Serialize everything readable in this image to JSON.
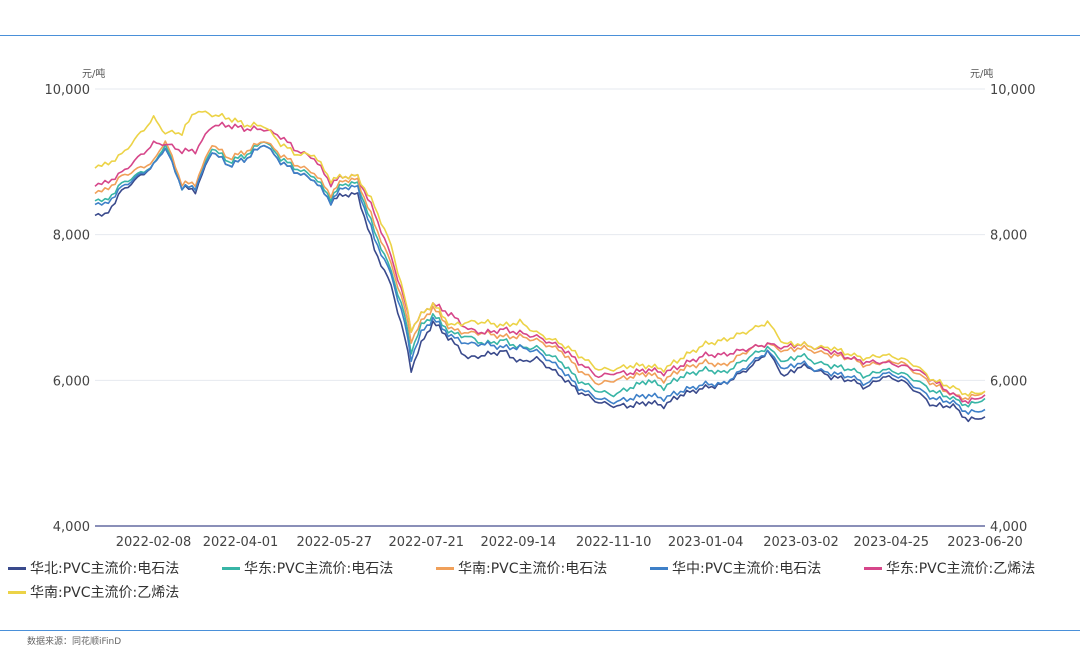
{
  "source_note": "数据来源：同花顺iFinD",
  "chart_data": {
    "type": "line",
    "ylabel_left": "元/吨",
    "ylabel_right": "元/吨",
    "ylim": [
      4000,
      10000
    ],
    "yticks": [
      "4,000",
      "6,000",
      "8,000",
      "10,000"
    ],
    "ytick_values": [
      4000,
      6000,
      8000,
      10000
    ],
    "grid": true,
    "legend_position": "bottom",
    "x_start": "2022-01-04",
    "x_end": "2023-06-20",
    "xticks": [
      "2022-02-08",
      "2022-04-01",
      "2022-05-27",
      "2022-07-21",
      "2022-09-14",
      "2022-11-10",
      "2023-01-04",
      "2023-03-02",
      "2023-04-25",
      "2023-06-20"
    ],
    "series": [
      {
        "name": "华北:PVC主流价:电石法",
        "color": "#3a4a8c",
        "x": [
          "2022-01-04",
          "2022-01-10",
          "2022-01-20",
          "2022-02-08",
          "2022-02-15",
          "2022-02-25",
          "2022-03-05",
          "2022-03-15",
          "2022-03-25",
          "2022-04-05",
          "2022-04-15",
          "2022-04-25",
          "2022-05-05",
          "2022-05-15",
          "2022-05-25",
          "2022-06-01",
          "2022-06-10",
          "2022-06-20",
          "2022-06-30",
          "2022-07-08",
          "2022-07-12",
          "2022-07-18",
          "2022-07-25",
          "2022-08-05",
          "2022-08-15",
          "2022-08-25",
          "2022-09-05",
          "2022-09-15",
          "2022-09-25",
          "2022-10-10",
          "2022-10-20",
          "2022-11-01",
          "2022-11-10",
          "2022-11-20",
          "2022-12-01",
          "2022-12-10",
          "2022-12-20",
          "2023-01-04",
          "2023-01-15",
          "2023-02-01",
          "2023-02-10",
          "2023-02-20",
          "2023-03-02",
          "2023-03-10",
          "2023-03-20",
          "2023-04-01",
          "2023-04-10",
          "2023-04-20",
          "2023-05-01",
          "2023-05-10",
          "2023-05-20",
          "2023-06-01",
          "2023-06-10",
          "2023-06-20"
        ],
        "y": [
          8300,
          8250,
          8600,
          8950,
          9200,
          8650,
          8600,
          9150,
          8950,
          9050,
          9250,
          9000,
          8850,
          8750,
          8450,
          8550,
          8550,
          7800,
          7300,
          6600,
          6150,
          6500,
          6800,
          6550,
          6300,
          6350,
          6400,
          6250,
          6300,
          6050,
          5850,
          5700,
          5650,
          5650,
          5700,
          5650,
          5800,
          5900,
          5950,
          6200,
          6400,
          6050,
          6200,
          6150,
          6050,
          6000,
          5900,
          6050,
          6000,
          5850,
          5650,
          5650,
          5450,
          5500
        ]
      },
      {
        "name": "华东:PVC主流价:电石法",
        "color": "#38b5a6",
        "x": [
          "2022-01-04",
          "2022-01-10",
          "2022-01-20",
          "2022-02-08",
          "2022-02-15",
          "2022-02-25",
          "2022-03-05",
          "2022-03-15",
          "2022-03-25",
          "2022-04-05",
          "2022-04-15",
          "2022-04-25",
          "2022-05-05",
          "2022-05-15",
          "2022-05-25",
          "2022-06-01",
          "2022-06-10",
          "2022-06-20",
          "2022-06-30",
          "2022-07-08",
          "2022-07-12",
          "2022-07-18",
          "2022-07-25",
          "2022-08-05",
          "2022-08-15",
          "2022-08-25",
          "2022-09-05",
          "2022-09-15",
          "2022-09-25",
          "2022-10-10",
          "2022-10-20",
          "2022-11-01",
          "2022-11-10",
          "2022-11-20",
          "2022-12-01",
          "2022-12-10",
          "2022-12-20",
          "2023-01-04",
          "2023-01-15",
          "2023-02-01",
          "2023-02-10",
          "2023-02-20",
          "2023-03-02",
          "2023-03-10",
          "2023-03-20",
          "2023-04-01",
          "2023-04-10",
          "2023-04-20",
          "2023-05-01",
          "2023-05-10",
          "2023-05-20",
          "2023-06-01",
          "2023-06-10",
          "2023-06-20"
        ],
        "y": [
          8500,
          8450,
          8700,
          8950,
          9250,
          8650,
          8650,
          9200,
          9000,
          9100,
          9300,
          9050,
          8900,
          8800,
          8500,
          8700,
          8700,
          8050,
          7500,
          6900,
          6400,
          6750,
          6900,
          6650,
          6600,
          6500,
          6550,
          6450,
          6450,
          6250,
          6000,
          5850,
          5800,
          5900,
          6000,
          5900,
          6050,
          6150,
          6100,
          6350,
          6450,
          6250,
          6350,
          6250,
          6200,
          6150,
          6050,
          6150,
          6100,
          6000,
          5850,
          5750,
          5650,
          5750
        ]
      },
      {
        "name": "华南:PVC主流价:电石法",
        "color": "#f0a05a",
        "x": [
          "2022-01-04",
          "2022-01-10",
          "2022-01-20",
          "2022-02-08",
          "2022-02-15",
          "2022-02-25",
          "2022-03-05",
          "2022-03-15",
          "2022-03-25",
          "2022-04-05",
          "2022-04-15",
          "2022-04-25",
          "2022-05-05",
          "2022-05-15",
          "2022-05-25",
          "2022-06-01",
          "2022-06-10",
          "2022-06-20",
          "2022-06-30",
          "2022-07-08",
          "2022-07-12",
          "2022-07-18",
          "2022-07-25",
          "2022-08-05",
          "2022-08-15",
          "2022-08-25",
          "2022-09-05",
          "2022-09-15",
          "2022-09-25",
          "2022-10-10",
          "2022-10-20",
          "2022-11-01",
          "2022-11-10",
          "2022-11-20",
          "2022-12-01",
          "2022-12-10",
          "2022-12-20",
          "2023-01-04",
          "2023-01-15",
          "2023-02-01",
          "2023-02-10",
          "2023-02-20",
          "2023-03-02",
          "2023-03-10",
          "2023-03-20",
          "2023-04-01",
          "2023-04-10",
          "2023-04-20",
          "2023-05-01",
          "2023-05-10",
          "2023-05-20",
          "2023-06-01",
          "2023-06-10",
          "2023-06-20"
        ],
        "y": [
          8600,
          8600,
          8800,
          9000,
          9300,
          8700,
          8700,
          9250,
          9050,
          9150,
          9300,
          9100,
          8950,
          8850,
          8550,
          8750,
          8750,
          8150,
          7600,
          7000,
          6550,
          6800,
          7000,
          6700,
          6650,
          6650,
          6600,
          6600,
          6550,
          6400,
          6150,
          5950,
          6000,
          6050,
          6100,
          6000,
          6150,
          6250,
          6200,
          6450,
          6500,
          6400,
          6450,
          6400,
          6350,
          6300,
          6200,
          6250,
          6250,
          6100,
          5950,
          5800,
          5750,
          5850
        ]
      },
      {
        "name": "华中:PVC主流价:电石法",
        "color": "#3e80c8",
        "x": [
          "2022-01-04",
          "2022-01-10",
          "2022-01-20",
          "2022-02-08",
          "2022-02-15",
          "2022-02-25",
          "2022-03-05",
          "2022-03-15",
          "2022-03-25",
          "2022-04-05",
          "2022-04-15",
          "2022-04-25",
          "2022-05-05",
          "2022-05-15",
          "2022-05-25",
          "2022-06-01",
          "2022-06-10",
          "2022-06-20",
          "2022-06-30",
          "2022-07-08",
          "2022-07-12",
          "2022-07-18",
          "2022-07-25",
          "2022-08-05",
          "2022-08-15",
          "2022-08-25",
          "2022-09-05",
          "2022-09-15",
          "2022-09-25",
          "2022-10-10",
          "2022-10-20",
          "2022-11-01",
          "2022-11-10",
          "2022-11-20",
          "2022-12-01",
          "2022-12-10",
          "2022-12-20",
          "2023-01-04",
          "2023-01-15",
          "2023-02-01",
          "2023-02-10",
          "2023-02-20",
          "2023-03-02",
          "2023-03-10",
          "2023-03-20",
          "2023-04-01",
          "2023-04-10",
          "2023-04-20",
          "2023-05-01",
          "2023-05-10",
          "2023-05-20",
          "2023-06-01",
          "2023-06-10",
          "2023-06-20"
        ],
        "y": [
          8450,
          8400,
          8650,
          8950,
          9200,
          8650,
          8650,
          9150,
          8950,
          9050,
          9250,
          9000,
          8850,
          8750,
          8450,
          8650,
          8650,
          7950,
          7450,
          6800,
          6300,
          6650,
          6850,
          6600,
          6500,
          6500,
          6450,
          6450,
          6400,
          6150,
          5900,
          5750,
          5700,
          5750,
          5800,
          5750,
          5850,
          5950,
          5950,
          6250,
          6400,
          6150,
          6250,
          6150,
          6100,
          6050,
          5950,
          6100,
          6050,
          5900,
          5750,
          5700,
          5550,
          5600
        ]
      },
      {
        "name": "华东:PVC主流价:乙烯法",
        "color": "#d6468a",
        "x": [
          "2022-01-04",
          "2022-01-10",
          "2022-01-20",
          "2022-02-08",
          "2022-02-15",
          "2022-02-25",
          "2022-03-05",
          "2022-03-15",
          "2022-03-25",
          "2022-04-05",
          "2022-04-15",
          "2022-04-25",
          "2022-05-05",
          "2022-05-15",
          "2022-05-25",
          "2022-06-01",
          "2022-06-10",
          "2022-06-20",
          "2022-06-30",
          "2022-07-08",
          "2022-07-12",
          "2022-07-18",
          "2022-07-25",
          "2022-08-05",
          "2022-08-15",
          "2022-08-25",
          "2022-09-05",
          "2022-09-15",
          "2022-09-25",
          "2022-10-10",
          "2022-10-20",
          "2022-11-01",
          "2022-11-10",
          "2022-11-20",
          "2022-12-01",
          "2022-12-10",
          "2022-12-20",
          "2023-01-04",
          "2023-01-15",
          "2023-02-01",
          "2023-02-10",
          "2023-02-20",
          "2023-03-02",
          "2023-03-10",
          "2023-03-20",
          "2023-04-01",
          "2023-04-10",
          "2023-04-20",
          "2023-05-01",
          "2023-05-10",
          "2023-05-20",
          "2023-06-01",
          "2023-06-10",
          "2023-06-20"
        ],
        "y": [
          8700,
          8700,
          8850,
          9250,
          9250,
          9150,
          9150,
          9500,
          9500,
          9450,
          9450,
          9350,
          9150,
          9050,
          8700,
          8800,
          8800,
          8300,
          7700,
          7100,
          6700,
          6900,
          7050,
          6900,
          6700,
          6650,
          6700,
          6650,
          6600,
          6450,
          6250,
          6050,
          6100,
          6100,
          6150,
          6100,
          6200,
          6350,
          6350,
          6450,
          6500,
          6450,
          6500,
          6450,
          6400,
          6300,
          6250,
          6250,
          6200,
          6150,
          6000,
          5800,
          5700,
          5800
        ]
      },
      {
        "name": "华南:PVC主流价:乙烯法",
        "color": "#ecd347",
        "x": [
          "2022-01-04",
          "2022-01-10",
          "2022-01-20",
          "2022-02-08",
          "2022-02-15",
          "2022-02-25",
          "2022-03-05",
          "2022-03-15",
          "2022-03-25",
          "2022-04-05",
          "2022-04-15",
          "2022-04-25",
          "2022-05-05",
          "2022-05-15",
          "2022-05-25",
          "2022-06-01",
          "2022-06-10",
          "2022-06-20",
          "2022-06-30",
          "2022-07-08",
          "2022-07-12",
          "2022-07-18",
          "2022-07-25",
          "2022-08-05",
          "2022-08-15",
          "2022-08-25",
          "2022-09-05",
          "2022-09-15",
          "2022-09-25",
          "2022-10-10",
          "2022-10-20",
          "2022-11-01",
          "2022-11-10",
          "2022-11-20",
          "2022-12-01",
          "2022-12-10",
          "2022-12-20",
          "2023-01-04",
          "2023-01-15",
          "2023-02-01",
          "2023-02-10",
          "2023-02-20",
          "2023-03-02",
          "2023-03-10",
          "2023-03-20",
          "2023-04-01",
          "2023-04-10",
          "2023-04-20",
          "2023-05-01",
          "2023-05-10",
          "2023-05-20",
          "2023-06-01",
          "2023-06-10",
          "2023-06-20"
        ],
        "y": [
          8950,
          8950,
          9100,
          9600,
          9400,
          9400,
          9700,
          9650,
          9600,
          9500,
          9500,
          9250,
          9100,
          9100,
          8750,
          8800,
          8800,
          8400,
          7850,
          7150,
          6700,
          6900,
          7050,
          6750,
          6800,
          6800,
          6750,
          6800,
          6650,
          6500,
          6350,
          6150,
          6150,
          6200,
          6200,
          6150,
          6300,
          6500,
          6550,
          6700,
          6800,
          6500,
          6500,
          6450,
          6450,
          6350,
          6300,
          6350,
          6300,
          6200,
          6000,
          5900,
          5800,
          5850
        ]
      }
    ]
  }
}
